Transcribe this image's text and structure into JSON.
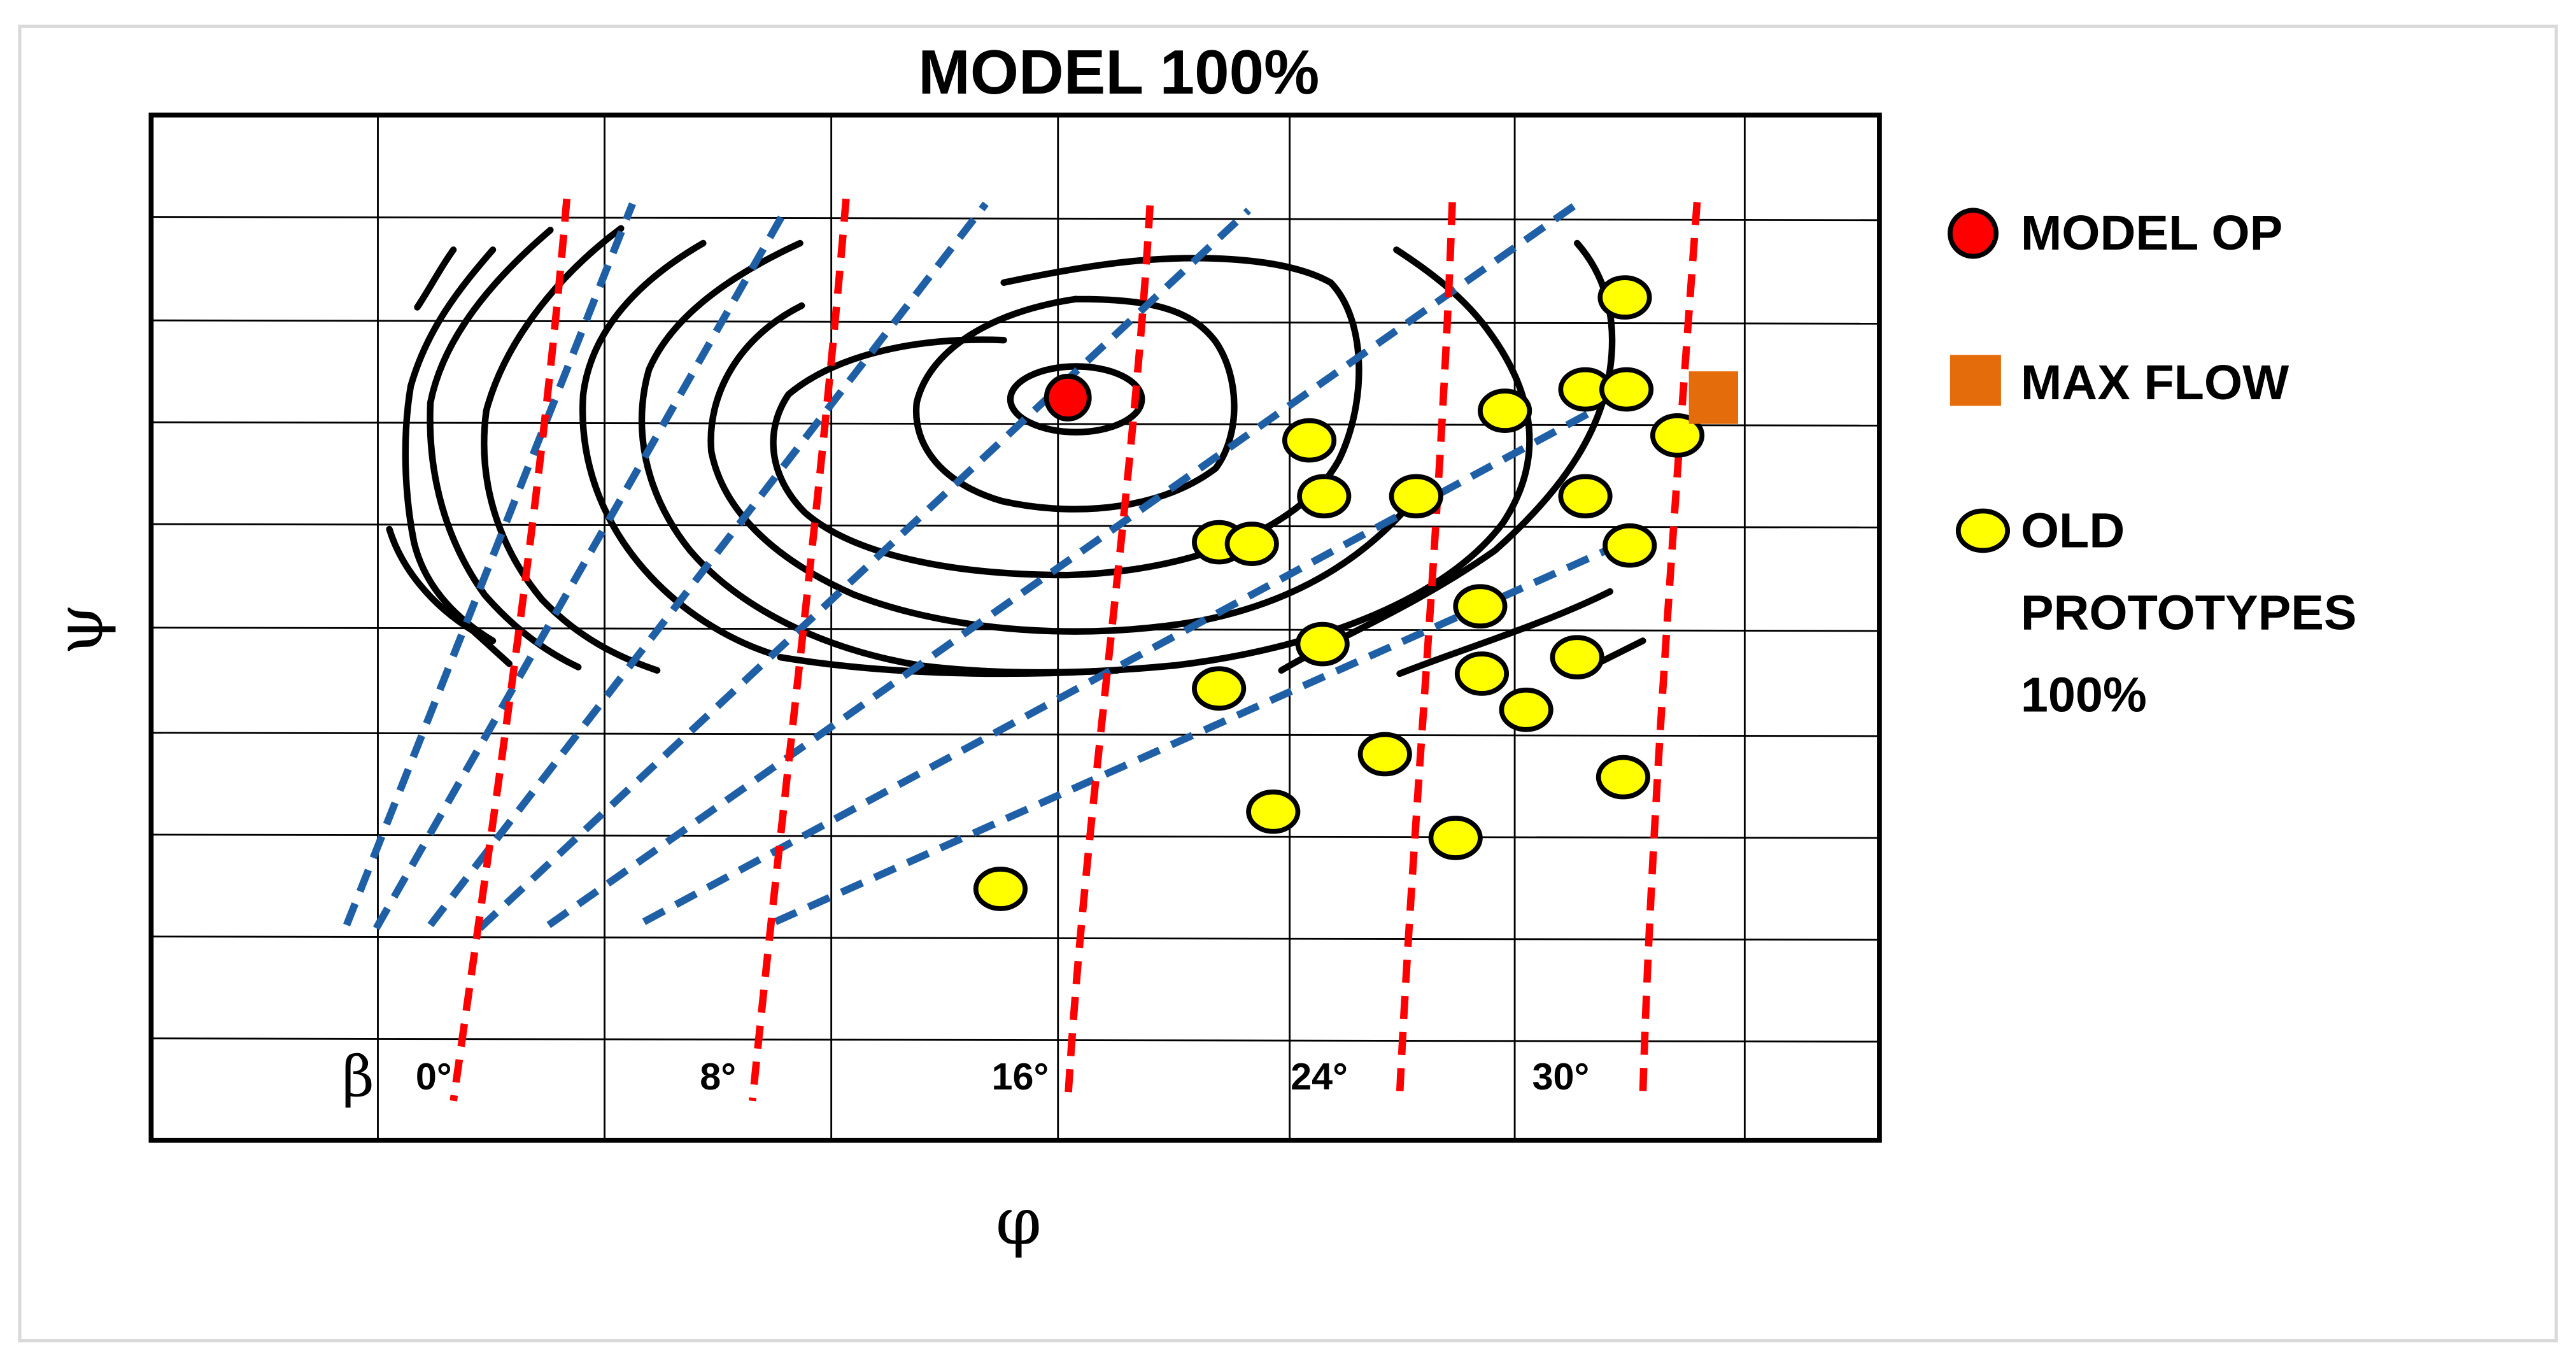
{
  "chart_data": {
    "type": "scatter",
    "title": "MODEL 100%",
    "xlabel": "φ",
    "ylabel": "ψ",
    "beta_label": "β",
    "beta_values": [
      "0°",
      "8°",
      "16°",
      "24°",
      "30°"
    ],
    "grid": true,
    "legend_position": "right",
    "legend": [
      {
        "key": "model_op",
        "label": "MODEL OP",
        "color": "#ff0000"
      },
      {
        "key": "max_flow",
        "label": "MAX FLOW",
        "color": "#e46c0a"
      },
      {
        "key": "old_prototypes",
        "label": "OLD PROTOTYPES 100%",
        "label_lines": [
          "OLD",
          "PROTOTYPES",
          "100%"
        ],
        "color": "#ffff00"
      }
    ],
    "colors": {
      "grid": "#000000",
      "efficiency_contours": "#000000",
      "beta_lines": "#ff0000",
      "dashed_lines": "#1f5fa5",
      "max_flow": "#e46c0a",
      "model_op": "#ff0000",
      "old_prototypes": "#ffff00"
    }
  }
}
